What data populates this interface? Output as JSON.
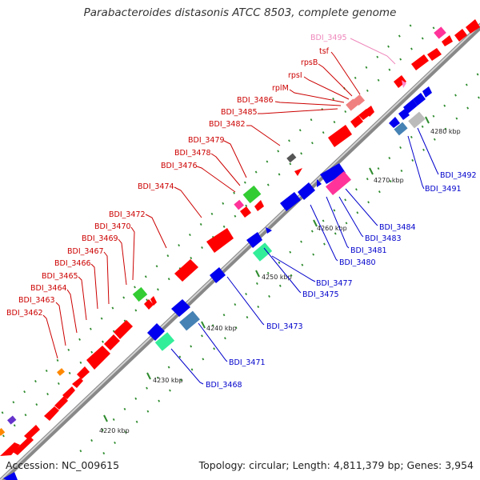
{
  "title": "Parabacteroides distasonis ATCC 8503, complete genome",
  "footer": {
    "accession": "Accession: NC_009615",
    "summary": "Topology: circular; Length: 4,811,379 bp; Genes: 3,954"
  },
  "colors": {
    "backbone_dark": "#888888",
    "backbone_light": "#d4d4d4",
    "label_red": "#cc0000",
    "label_blue": "#0000cc",
    "label_pink": "#ee88bb",
    "dot_green": "#2e8b2e",
    "gene_red": "#ff0000",
    "gene_blue": "#0000ee",
    "gene_green": "#33cc33",
    "gene_mint": "#33ee99",
    "gene_steel": "#4682b4",
    "gene_pink": "#ff3399",
    "gene_salmon": "#f08080",
    "gene_gray": "#bbbbbb",
    "gene_dark": "#555555",
    "gene_orange": "#ff8800",
    "gene_purple": "#6633cc"
  },
  "ticks": [
    {
      "label": "4220 kbp"
    },
    {
      "label": "4230 kbp"
    },
    {
      "label": "4240 kbp"
    },
    {
      "label": "4250 kbp"
    },
    {
      "label": "4260 kbp"
    },
    {
      "label": "4270 kbp"
    },
    {
      "label": "4280 kbp"
    }
  ],
  "labels_top": [
    {
      "text": "BDI_3495"
    },
    {
      "text": "tsf"
    },
    {
      "text": "rpsB"
    },
    {
      "text": "rpsI"
    },
    {
      "text": "rplM"
    },
    {
      "text": "BDI_3486"
    },
    {
      "text": "BDI_3485"
    },
    {
      "text": "BDI_3482"
    },
    {
      "text": "BDI_3479"
    },
    {
      "text": "BDI_3478"
    },
    {
      "text": "BDI_3476"
    },
    {
      "text": "BDI_3474"
    },
    {
      "text": "BDI_3472"
    },
    {
      "text": "BDI_3470"
    },
    {
      "text": "BDI_3469"
    },
    {
      "text": "BDI_3467"
    },
    {
      "text": "BDI_3466"
    },
    {
      "text": "BDI_3465"
    },
    {
      "text": "BDI_3464"
    },
    {
      "text": "BDI_3463"
    },
    {
      "text": "BDI_3462"
    }
  ],
  "labels_bottom": [
    {
      "text": "BDI_3492"
    },
    {
      "text": "BDI_3491"
    },
    {
      "text": "BDI_3484"
    },
    {
      "text": "BDI_3483"
    },
    {
      "text": "BDI_3481"
    },
    {
      "text": "BDI_3480"
    },
    {
      "text": "BDI_3477"
    },
    {
      "text": "BDI_3475"
    },
    {
      "text": "BDI_3473"
    },
    {
      "text": "BDI_3471"
    },
    {
      "text": "BDI_3468"
    }
  ]
}
